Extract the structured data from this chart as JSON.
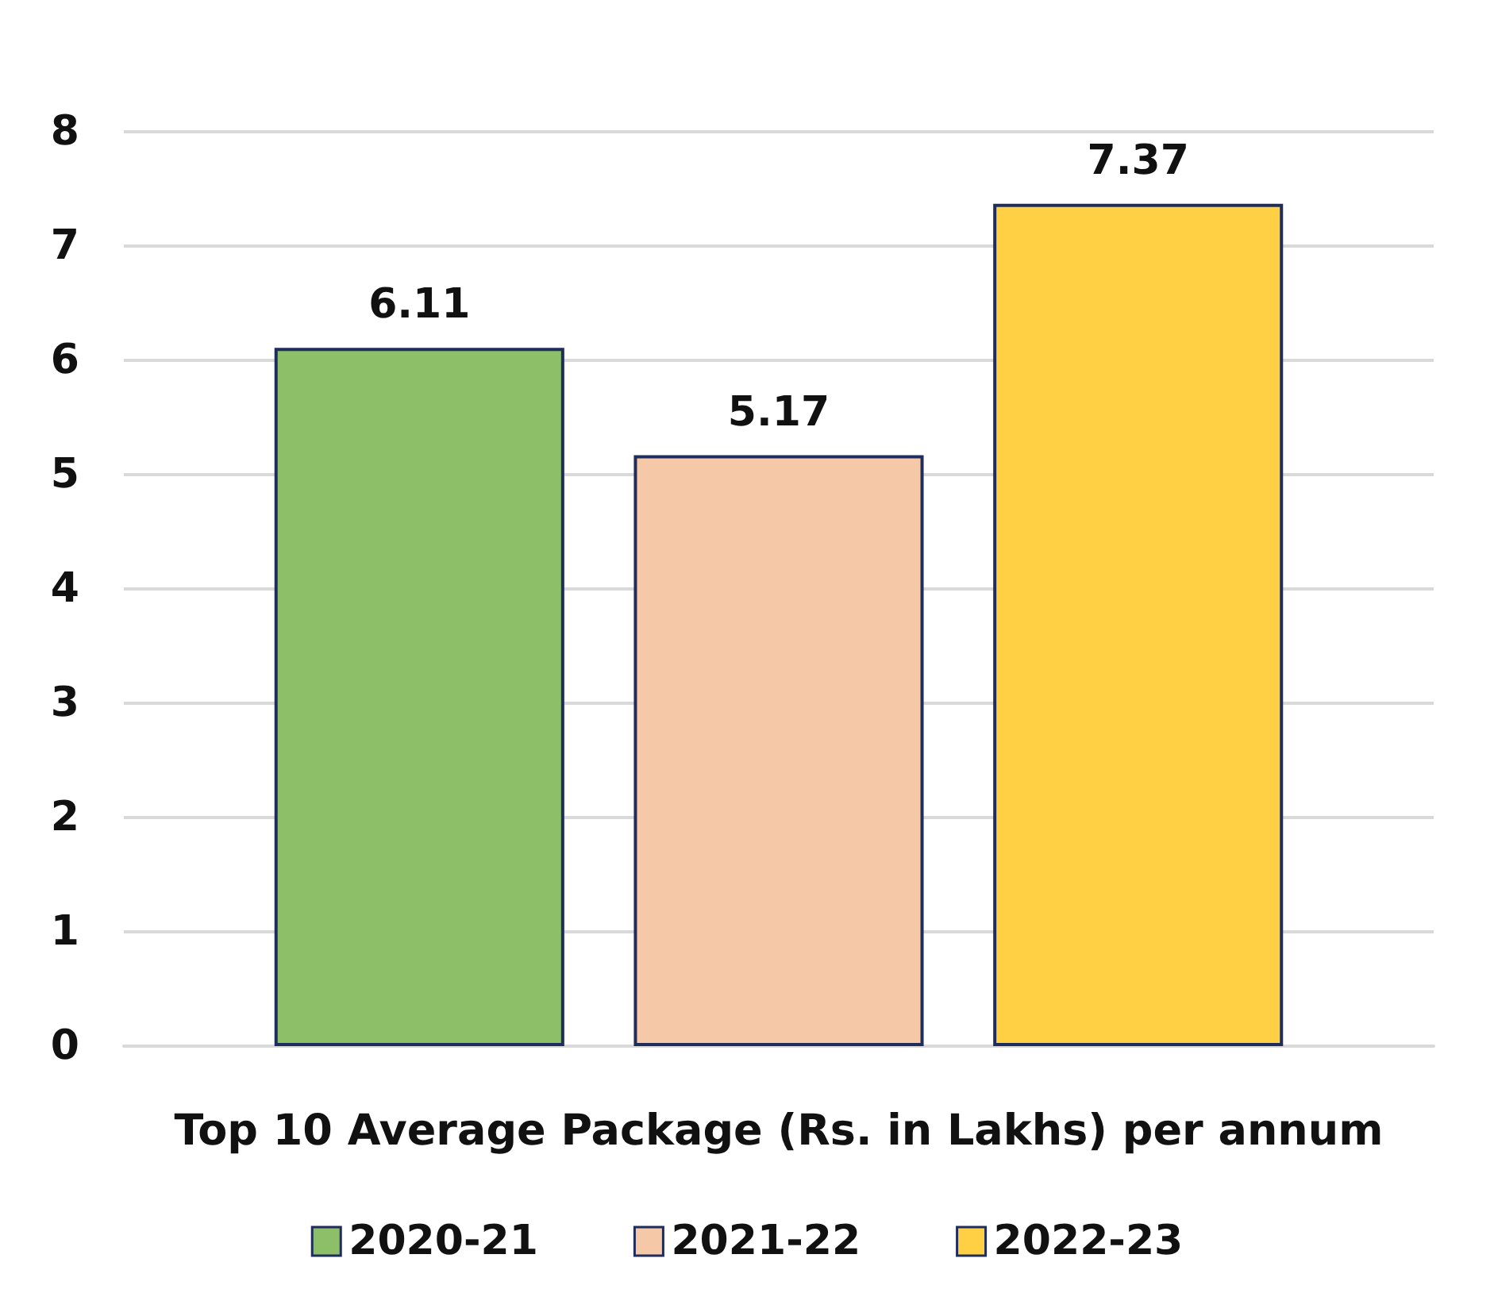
{
  "chart_data": {
    "type": "bar",
    "xlabel": "Top 10 Average Package (Rs. in Lakhs) per annum",
    "categories": [
      null
    ],
    "series": [
      {
        "name": "2020-21",
        "color": "#8cbf68",
        "values": [
          6.11
        ]
      },
      {
        "name": "2021-22",
        "color": "#f5c8a8",
        "values": [
          5.17
        ]
      },
      {
        "name": "2022-23",
        "color": "#ffd044",
        "values": [
          7.37
        ]
      }
    ],
    "ylim": [
      0,
      8
    ],
    "yticks": [
      0,
      1,
      2,
      3,
      4,
      5,
      6,
      7,
      8
    ],
    "grid": "y",
    "legend": "bottom",
    "data_labels": true
  }
}
